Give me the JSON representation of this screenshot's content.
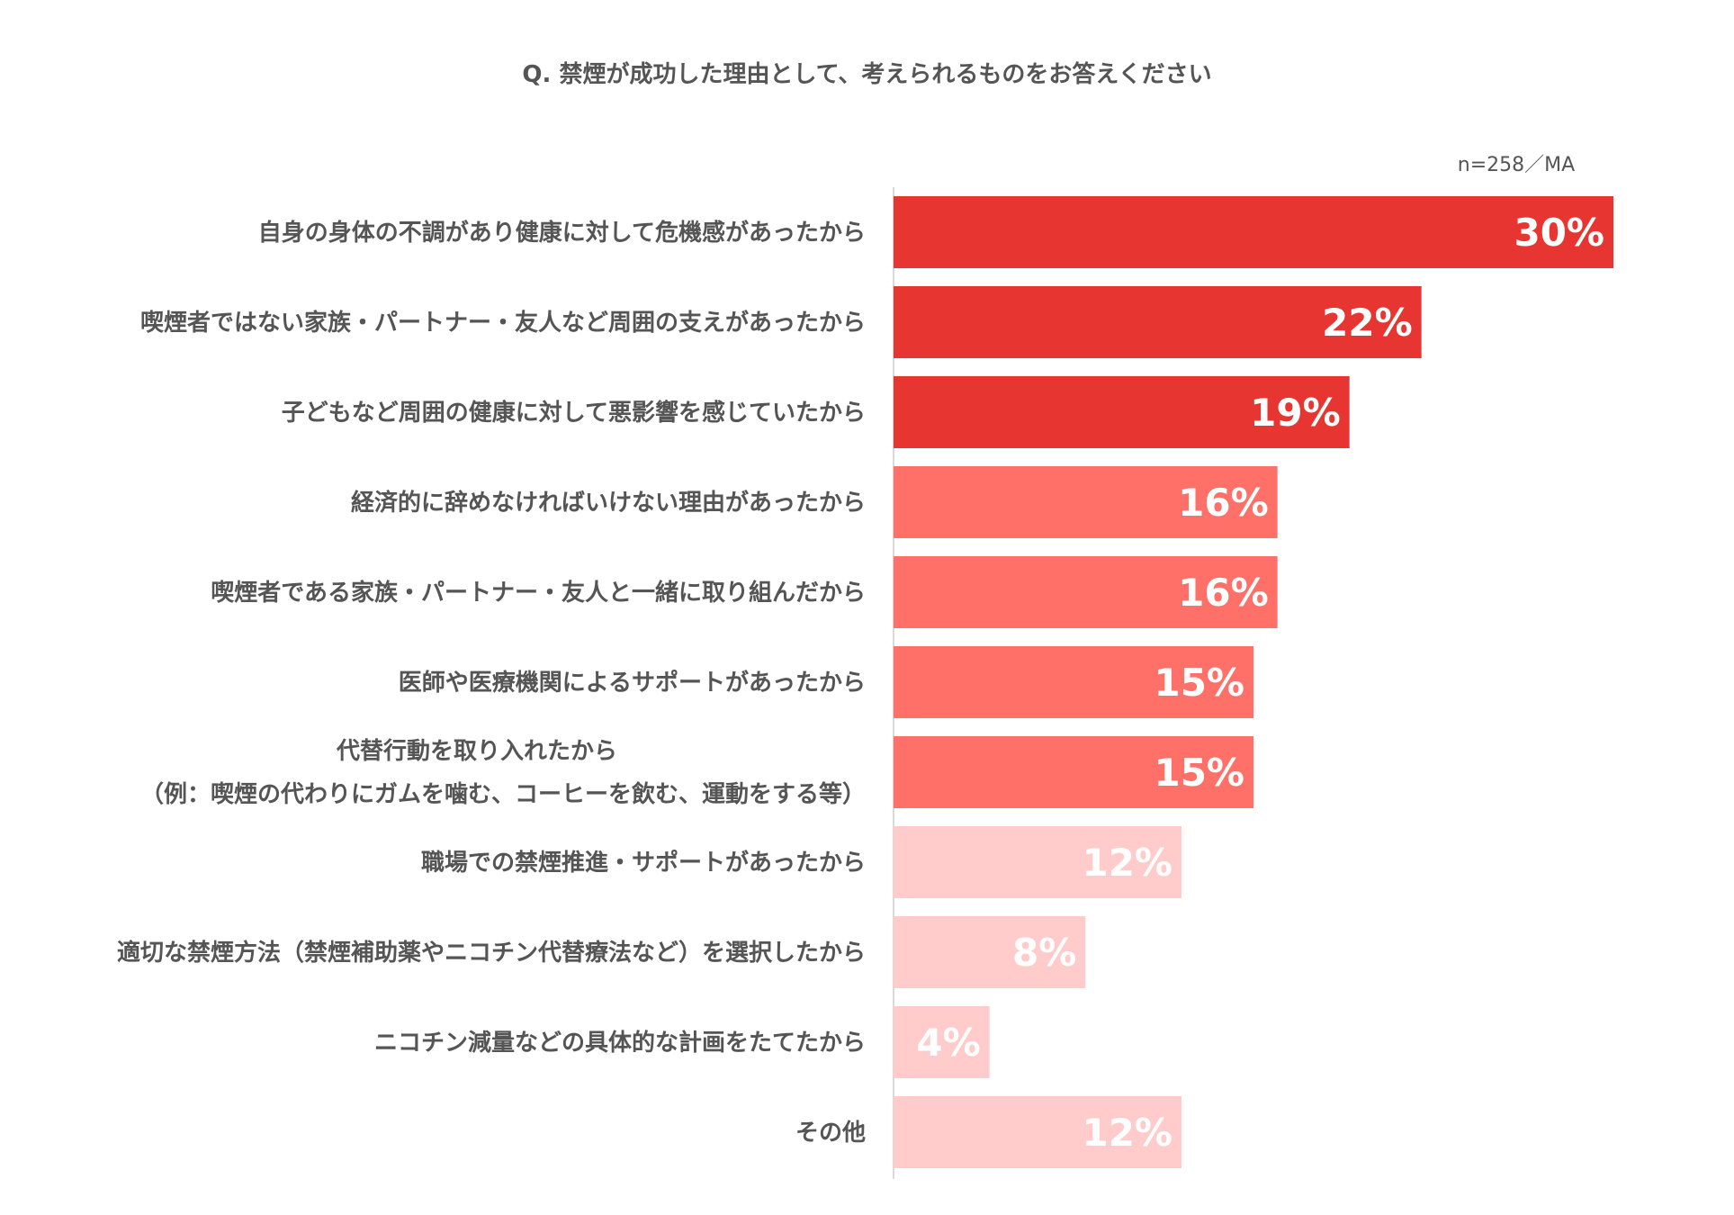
{
  "title": "Q.  禁煙が成功した理由として、考えられるものをお答えください",
  "note": "n=258／MA",
  "colors": {
    "high": "#e73631",
    "mid": "#ff7069",
    "low": "#ffcccb",
    "label_text": "#555555",
    "value_text": "#ffffff",
    "axis": "#d9d9d9"
  },
  "chart_data": {
    "type": "bar",
    "orientation": "horizontal",
    "title": "Q.  禁煙が成功した理由として、考えられるものをお答えください",
    "xlim": [
      0,
      30
    ],
    "grid": false,
    "categories": [
      [
        "自身の身体の不調があり健康に対して危機感があったから"
      ],
      [
        "喫煙者ではない家族・パートナー・友人など周囲の支えがあったから"
      ],
      [
        "子どもなど周囲の健康に対して悪影響を感じていたから"
      ],
      [
        "経済的に辞めなければいけない理由があったから"
      ],
      [
        "喫煙者である家族・パートナー・友人と一緒に取り組んだから"
      ],
      [
        "医師や医療機関によるサポートがあったから"
      ],
      [
        "代替行動を取り入れたから",
        "（例：喫煙の代わりにガムを噛む、コーヒーを飲む、運動をする等）"
      ],
      [
        "職場での禁煙推進・サポートがあったから"
      ],
      [
        "適切な禁煙方法（禁煙補助薬やニコチン代替療法など）を選択したから"
      ],
      [
        "ニコチン減量などの具体的な計画をたてたから"
      ],
      [
        "その他"
      ]
    ],
    "values": [
      30,
      22,
      19,
      16,
      16,
      15,
      15,
      12,
      8,
      4,
      12
    ],
    "value_labels": [
      "30%",
      "22%",
      "19%",
      "16%",
      "16%",
      "15%",
      "15%",
      "12%",
      "8%",
      "4%",
      "12%"
    ],
    "color_groups": [
      "high",
      "high",
      "high",
      "mid",
      "mid",
      "mid",
      "mid",
      "low",
      "low",
      "low",
      "low"
    ]
  }
}
